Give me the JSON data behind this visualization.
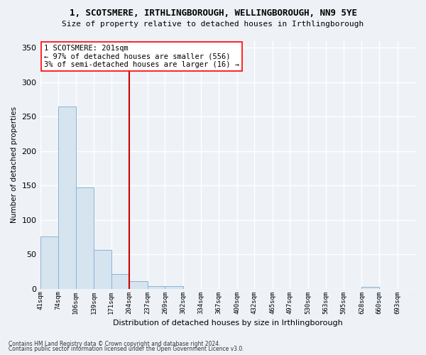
{
  "title": "1, SCOTSMERE, IRTHLINGBOROUGH, WELLINGBOROUGH, NN9 5YE",
  "subtitle": "Size of property relative to detached houses in Irthlingborough",
  "xlabel": "Distribution of detached houses by size in Irthlingborough",
  "ylabel": "Number of detached properties",
  "footnote1": "Contains HM Land Registry data © Crown copyright and database right 2024.",
  "footnote2": "Contains public sector information licensed under the Open Government Licence v3.0.",
  "annotation_line1": "1 SCOTSMERE: 201sqm",
  "annotation_line2": "← 97% of detached houses are smaller (556)",
  "annotation_line3": "3% of semi-detached houses are larger (16) →",
  "bar_color": "#d6e4f0",
  "bar_edge_color": "#8ab4d4",
  "vline_color": "#cc0000",
  "background_color": "#eef2f7",
  "grid_color": "#ffffff",
  "categories": [
    "41sqm",
    "74sqm",
    "106sqm",
    "139sqm",
    "171sqm",
    "204sqm",
    "237sqm",
    "269sqm",
    "302sqm",
    "334sqm",
    "367sqm",
    "400sqm",
    "432sqm",
    "465sqm",
    "497sqm",
    "530sqm",
    "563sqm",
    "595sqm",
    "628sqm",
    "660sqm",
    "693sqm"
  ],
  "values": [
    76,
    265,
    147,
    56,
    21,
    11,
    4,
    4,
    0,
    0,
    0,
    0,
    0,
    0,
    0,
    0,
    0,
    0,
    3,
    0,
    0
  ],
  "bin_edges": [
    41,
    74,
    106,
    139,
    171,
    204,
    237,
    269,
    302,
    334,
    367,
    400,
    432,
    465,
    497,
    530,
    563,
    595,
    628,
    660,
    693,
    726
  ],
  "ylim": [
    0,
    360
  ],
  "vline_x": 204,
  "yticks": [
    0,
    50,
    100,
    150,
    200,
    250,
    300,
    350
  ]
}
